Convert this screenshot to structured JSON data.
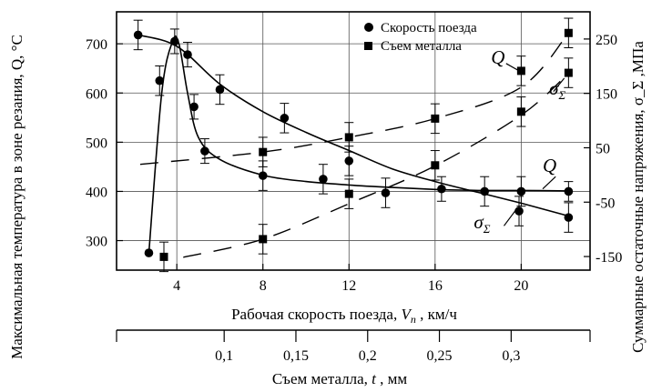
{
  "chart_data": {
    "type": "scatter",
    "x_axis_primary": {
      "label_prefix": "Рабочая скорость поезда, ",
      "label_var": "V",
      "label_sub": "п",
      "label_suffix": " , км/ч",
      "ticks": [
        4,
        8,
        12,
        16,
        20
      ],
      "range": [
        1.2,
        23.2
      ]
    },
    "x_axis_secondary": {
      "label_prefix": "Съем металла, ",
      "label_var": "t",
      "label_suffix": " , мм",
      "ticks": [
        "0,1",
        "0,15",
        "0,2",
        "0,25",
        "0,3"
      ],
      "tick_values": [
        0.1,
        0.15,
        0.2,
        0.25,
        0.3
      ],
      "range": [
        0.025,
        0.355
      ]
    },
    "y_axis_left": {
      "label": "Максимальная температура в зоне резания, Q, °C",
      "ticks": [
        300,
        400,
        500,
        600,
        700
      ],
      "range": [
        240,
        765
      ]
    },
    "y_axis_right": {
      "label": "Суммарные остаточные напряжения, σ_Σ ,МПа",
      "ticks": [
        250,
        150,
        50,
        -50,
        -150
      ],
      "range": [
        -175,
        300
      ]
    },
    "legend": {
      "position": "top-right",
      "entries": [
        {
          "marker": "circle",
          "label": "Скорость поезда"
        },
        {
          "marker": "square",
          "label": "Съем металла"
        }
      ]
    },
    "grid": true,
    "series": [
      {
        "name": "Скорость поезда",
        "marker": "circle",
        "points": [
          {
            "x": 2.7,
            "y": 275,
            "err": 0
          },
          {
            "x": 3.2,
            "y": 625,
            "err": 30
          },
          {
            "x": 3.9,
            "y": 705,
            "err": 25
          },
          {
            "x": 4.5,
            "y": 678,
            "err": 25
          },
          {
            "x": 4.8,
            "y": 572,
            "err": 25
          },
          {
            "x": 5.3,
            "y": 482,
            "err": 25
          },
          {
            "x": 8.0,
            "y": 432,
            "err": 30
          },
          {
            "x": 10.8,
            "y": 425,
            "err": 30
          },
          {
            "x": 13.7,
            "y": 397,
            "err": 30
          },
          {
            "x": 16.3,
            "y": 405,
            "err": 25
          },
          {
            "x": 18.3,
            "y": 400,
            "err": 30
          },
          {
            "x": 20.0,
            "y": 400,
            "err": 30
          },
          {
            "x": 22.2,
            "y": 400,
            "err": 20
          },
          {
            "x": 2.2,
            "y": 718,
            "err": 30
          },
          {
            "x": 6.0,
            "y": 607,
            "err": 30
          },
          {
            "x": 9.0,
            "y": 549,
            "err": 30
          },
          {
            "x": 12.0,
            "y": 462,
            "err": 30
          },
          {
            "x": 19.9,
            "y": 360,
            "err": 30
          },
          {
            "x": 22.2,
            "y": 347,
            "err": 30
          }
        ]
      },
      {
        "name": "Съем металла",
        "marker": "square",
        "points": [
          {
            "x": 3.4,
            "y": 267,
            "err": 30
          },
          {
            "x": 8.0,
            "y": 303,
            "err": 30
          },
          {
            "x": 8.0,
            "y": 480,
            "err": 30
          },
          {
            "x": 12.0,
            "y": 395,
            "err": 30
          },
          {
            "x": 12.0,
            "y": 510,
            "err": 30
          },
          {
            "x": 16.0,
            "y": 453,
            "err": 30
          },
          {
            "x": 16.0,
            "y": 548,
            "err": 30
          },
          {
            "x": 20.0,
            "y": 562,
            "err": 30
          },
          {
            "x": 20.0,
            "y": 645,
            "err": 30
          },
          {
            "x": 22.2,
            "y": 641,
            "err": 30
          },
          {
            "x": 22.2,
            "y": 722,
            "err": 30
          }
        ]
      }
    ],
    "curves": [
      {
        "label_var": "Q",
        "style": "solid",
        "points": [
          [
            2.2,
            718
          ],
          [
            4,
            695
          ],
          [
            6,
            618
          ],
          [
            8,
            562
          ],
          [
            10,
            520
          ],
          [
            12,
            483
          ],
          [
            14,
            446
          ],
          [
            16,
            420
          ],
          [
            18,
            398
          ],
          [
            20,
            376
          ],
          [
            22.2,
            350
          ]
        ]
      },
      {
        "label_var": "Q",
        "style": "solid",
        "points": [
          [
            2.7,
            275
          ],
          [
            3.3,
            600
          ],
          [
            3.8,
            705
          ],
          [
            4.1,
            700
          ],
          [
            4.5,
            600
          ],
          [
            5.0,
            510
          ],
          [
            6,
            465
          ],
          [
            8,
            433
          ],
          [
            10,
            420
          ],
          [
            12,
            413
          ],
          [
            14,
            408
          ],
          [
            16,
            404
          ],
          [
            18,
            402
          ],
          [
            20,
            402
          ],
          [
            22.2,
            401
          ]
        ]
      },
      {
        "label_var": "σ",
        "label_sub": "Σ",
        "style": "dashed",
        "points": [
          [
            4.3,
            266
          ],
          [
            8,
            303
          ],
          [
            12,
            375
          ],
          [
            16,
            452
          ],
          [
            20,
            555
          ],
          [
            22.2,
            640
          ]
        ]
      },
      {
        "label_var": "σ",
        "label_sub": "Σ",
        "style": "dashed",
        "points": [
          [
            2.3,
            455
          ],
          [
            8,
            480
          ],
          [
            12,
            510
          ],
          [
            16,
            548
          ],
          [
            20,
            612
          ],
          [
            22.2,
            722
          ]
        ]
      }
    ],
    "annotations": [
      {
        "var": "Q",
        "x": 18.6,
        "y": 660
      },
      {
        "var": "σ",
        "sub": "Σ",
        "x": 21.3,
        "y": 597
      },
      {
        "var": "Q",
        "x": 21.0,
        "y": 440
      },
      {
        "var": "σ",
        "sub": "Σ",
        "x": 17.8,
        "y": 325
      }
    ]
  }
}
